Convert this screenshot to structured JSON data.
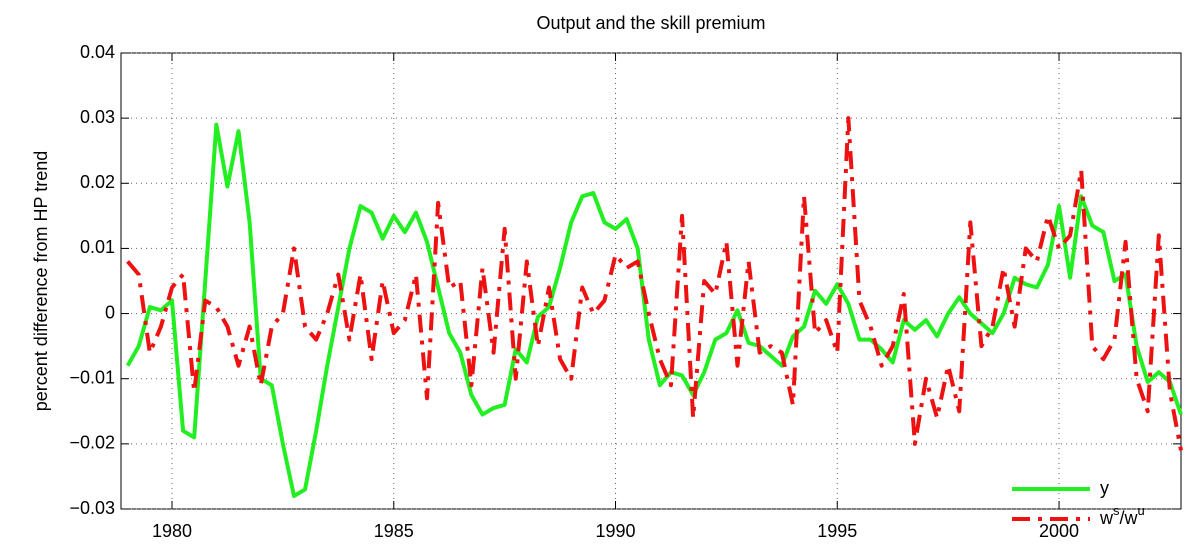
{
  "chart_data": {
    "type": "line",
    "title": "Output and the skill premium",
    "ylabel": "percent difference from HP trend",
    "x": [
      1979,
      1979.25,
      1979.5,
      1979.75,
      1980,
      1980.25,
      1980.5,
      1980.75,
      1981,
      1981.25,
      1981.5,
      1981.75,
      1982,
      1982.25,
      1982.5,
      1982.75,
      1983,
      1983.25,
      1983.5,
      1983.75,
      1984,
      1984.25,
      1984.5,
      1984.75,
      1985,
      1985.25,
      1985.5,
      1985.75,
      1986,
      1986.25,
      1986.5,
      1986.75,
      1987,
      1987.25,
      1987.5,
      1987.75,
      1988,
      1988.25,
      1988.5,
      1988.75,
      1989,
      1989.25,
      1989.5,
      1989.75,
      1990,
      1990.25,
      1990.5,
      1990.75,
      1991,
      1991.25,
      1991.5,
      1991.75,
      1992,
      1992.25,
      1992.5,
      1992.75,
      1993,
      1993.25,
      1993.5,
      1993.75,
      1994,
      1994.25,
      1994.5,
      1994.75,
      1995,
      1995.25,
      1995.5,
      1995.75,
      1996,
      1996.25,
      1996.5,
      1996.75,
      1997,
      1997.25,
      1997.5,
      1997.75,
      1998,
      1998.25,
      1998.5,
      1998.75,
      1999,
      1999.25,
      1999.5,
      1999.75,
      2000,
      2000.25,
      2000.5,
      2000.75,
      2001,
      2001.25,
      2001.5,
      2001.75,
      2002,
      2002.25,
      2002.5,
      2002.75
    ],
    "series": [
      {
        "name": "y",
        "color": "#22ee22",
        "linestyle": "solid",
        "values": [
          -0.008,
          -0.005,
          0.001,
          0.0005,
          0.002,
          -0.018,
          -0.019,
          0.005,
          0.029,
          0.0195,
          0.028,
          0.014,
          -0.01,
          -0.011,
          -0.02,
          -0.028,
          -0.027,
          -0.018,
          -0.008,
          0.001,
          0.01,
          0.0165,
          0.0155,
          0.0115,
          0.015,
          0.0125,
          0.0155,
          0.011,
          0.004,
          -0.003,
          -0.006,
          -0.0125,
          -0.0155,
          -0.0145,
          -0.014,
          -0.0055,
          -0.0075,
          -0.0005,
          0.001,
          0.007,
          0.014,
          0.018,
          0.0185,
          0.014,
          0.013,
          0.0145,
          0.01,
          -0.004,
          -0.011,
          -0.009,
          -0.0095,
          -0.0125,
          -0.009,
          -0.004,
          -0.003,
          0.0005,
          -0.0045,
          -0.005,
          -0.0065,
          -0.008,
          -0.0035,
          -0.002,
          0.0035,
          0.0015,
          0.0045,
          0.0015,
          -0.004,
          -0.004,
          -0.0055,
          -0.0075,
          -0.001,
          -0.0025,
          -0.001,
          -0.0035,
          0.0,
          0.0025,
          0.0,
          -0.0015,
          -0.003,
          0.0,
          0.0055,
          0.0045,
          0.004,
          0.0075,
          0.0165,
          0.0055,
          0.018,
          0.0135,
          0.0125,
          0.005,
          0.006,
          -0.005,
          -0.0105,
          -0.009,
          -0.0105,
          -0.0155
        ]
      },
      {
        "name": "w^s/w^u",
        "color": "#ee1111",
        "linestyle": "dashdot",
        "values": [
          0.008,
          0.006,
          -0.006,
          -0.002,
          0.004,
          0.006,
          -0.012,
          0.002,
          0.001,
          -0.002,
          -0.008,
          -0.002,
          -0.011,
          -0.002,
          0.0,
          0.01,
          -0.002,
          -0.004,
          0.0,
          0.006,
          -0.004,
          0.006,
          -0.007,
          0.005,
          -0.003,
          -0.001,
          0.006,
          -0.013,
          0.017,
          0.004,
          0.005,
          -0.011,
          0.007,
          -0.006,
          0.013,
          -0.01,
          0.008,
          -0.005,
          0.004,
          -0.007,
          -0.01,
          0.004,
          0.0,
          0.002,
          0.009,
          0.007,
          0.008,
          0.0,
          -0.007,
          -0.011,
          0.015,
          -0.016,
          0.005,
          0.003,
          0.011,
          -0.008,
          0.008,
          -0.006,
          -0.005,
          -0.006,
          -0.014,
          0.018,
          -0.003,
          -0.001,
          -0.006,
          0.03,
          0.002,
          -0.002,
          -0.008,
          -0.005,
          0.003,
          -0.02,
          -0.01,
          -0.016,
          -0.008,
          -0.015,
          0.014,
          -0.005,
          -0.002,
          0.007,
          -0.002,
          0.01,
          0.008,
          0.015,
          0.01,
          0.012,
          0.022,
          -0.005,
          -0.007,
          -0.004,
          0.011,
          -0.01,
          -0.015,
          0.012,
          -0.012,
          -0.021
        ]
      }
    ],
    "xlim": [
      1978.85,
      2002.75
    ],
    "xticks": [
      1980,
      1985,
      1990,
      1995,
      2000
    ],
    "ylim": [
      -0.03,
      0.04
    ],
    "yticks": [
      {
        "value": -0.03,
        "label": "−0.03"
      },
      {
        "value": -0.02,
        "label": "−0.02"
      },
      {
        "value": -0.01,
        "label": "−0.01"
      },
      0,
      0.01,
      0.02,
      0.03,
      0.04
    ],
    "grid": true,
    "legend": "lower right"
  }
}
